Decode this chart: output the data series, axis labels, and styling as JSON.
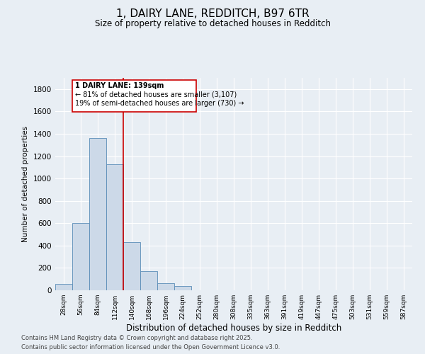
{
  "title": "1, DAIRY LANE, REDDITCH, B97 6TR",
  "subtitle": "Size of property relative to detached houses in Redditch",
  "xlabel": "Distribution of detached houses by size in Redditch",
  "ylabel": "Number of detached properties",
  "bins": [
    "28sqm",
    "56sqm",
    "84sqm",
    "112sqm",
    "140sqm",
    "168sqm",
    "196sqm",
    "224sqm",
    "252sqm",
    "280sqm",
    "308sqm",
    "335sqm",
    "363sqm",
    "391sqm",
    "419sqm",
    "447sqm",
    "475sqm",
    "503sqm",
    "531sqm",
    "559sqm",
    "587sqm"
  ],
  "bar_values": [
    55,
    600,
    1360,
    1130,
    430,
    170,
    65,
    35,
    0,
    0,
    0,
    0,
    0,
    0,
    0,
    0,
    0,
    0,
    0,
    0,
    0
  ],
  "bar_color": "#ccd9e8",
  "bar_edge_color": "#5b8db8",
  "background_color": "#e8eef4",
  "grid_color": "#ffffff",
  "vline_color": "#cc0000",
  "annotation_title": "1 DAIRY LANE: 139sqm",
  "annotation_line1": "← 81% of detached houses are smaller (3,107)",
  "annotation_line2": "19% of semi-detached houses are larger (730) →",
  "annotation_box_color": "#cc0000",
  "annotation_fill": "#ffffff",
  "ylim": [
    0,
    1900
  ],
  "yticks": [
    0,
    200,
    400,
    600,
    800,
    1000,
    1200,
    1400,
    1600,
    1800
  ],
  "footer1": "Contains HM Land Registry data © Crown copyright and database right 2025.",
  "footer2": "Contains public sector information licensed under the Open Government Licence v3.0."
}
